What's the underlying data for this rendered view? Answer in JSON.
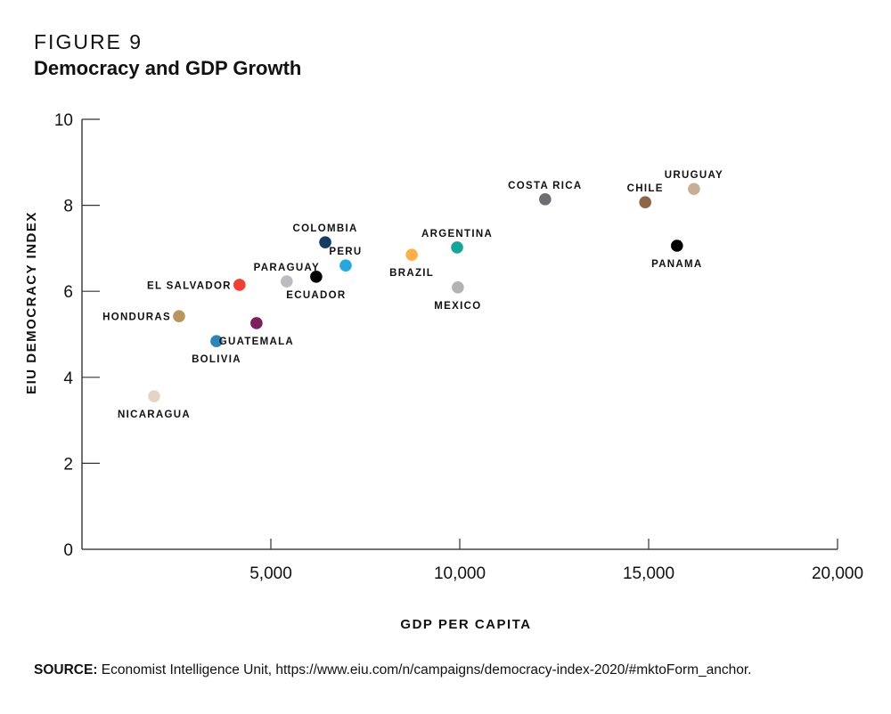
{
  "figure": {
    "label": "FIGURE 9",
    "title": "Democracy and GDP Growth"
  },
  "source": {
    "prefix": "SOURCE:",
    "text": " Economist Intelligence Unit, https://www.eiu.com/n/campaigns/democracy-index-2020/#mktoForm_anchor."
  },
  "chart_data": {
    "type": "scatter",
    "title": "Democracy and GDP Growth",
    "xlabel": "GDP PER CAPITA",
    "ylabel": "EIU DEMOCRACY INDEX",
    "xlim": [
      0,
      20000
    ],
    "ylim": [
      0,
      10
    ],
    "xticks": [
      5000,
      10000,
      15000,
      20000
    ],
    "xtick_labels": [
      "5,000",
      "10,000",
      "15,000",
      "20,000"
    ],
    "yticks": [
      0,
      2,
      4,
      6,
      8,
      10
    ],
    "ytick_labels": [
      "0",
      "2",
      "4",
      "6",
      "8",
      "10"
    ],
    "grid": false,
    "legend": "none",
    "points": [
      {
        "name": "NICARAGUA",
        "x": 1910,
        "y": 3.56,
        "color": "#e3d5c6",
        "label_pos": "below"
      },
      {
        "name": "HONDURAS",
        "x": 2570,
        "y": 5.42,
        "color": "#b9955f",
        "label_pos": "left"
      },
      {
        "name": "BOLIVIA",
        "x": 3560,
        "y": 4.84,
        "color": "#2e86b8",
        "label_pos": "below"
      },
      {
        "name": "EL SALVADOR",
        "x": 4170,
        "y": 6.15,
        "color": "#ee4035",
        "label_pos": "left"
      },
      {
        "name": "GUATEMALA",
        "x": 4620,
        "y": 5.26,
        "color": "#7d1f5e",
        "label_pos": "below"
      },
      {
        "name": "PARAGUAY",
        "x": 5420,
        "y": 6.23,
        "color": "#bcbcc0",
        "label_pos": "above"
      },
      {
        "name": "ECUADOR",
        "x": 6200,
        "y": 6.34,
        "color": "#000000",
        "label_pos": "below"
      },
      {
        "name": "COLOMBIA",
        "x": 6440,
        "y": 7.14,
        "color": "#173a63",
        "label_pos": "above"
      },
      {
        "name": "PERU",
        "x": 6980,
        "y": 6.6,
        "color": "#29a8e0",
        "label_pos": "above"
      },
      {
        "name": "BRAZIL",
        "x": 8730,
        "y": 6.85,
        "color": "#fbb04b",
        "label_pos": "below"
      },
      {
        "name": "ARGENTINA",
        "x": 9930,
        "y": 7.02,
        "color": "#16a596",
        "label_pos": "above"
      },
      {
        "name": "MEXICO",
        "x": 9950,
        "y": 6.09,
        "color": "#b3b3b6",
        "label_pos": "below"
      },
      {
        "name": "COSTA RICA",
        "x": 12260,
        "y": 8.14,
        "color": "#6d6e71",
        "label_pos": "above"
      },
      {
        "name": "CHILE",
        "x": 14910,
        "y": 8.07,
        "color": "#8c6646",
        "label_pos": "above"
      },
      {
        "name": "PANAMA",
        "x": 15750,
        "y": 7.06,
        "color": "#000000",
        "label_pos": "below"
      },
      {
        "name": "URUGUAY",
        "x": 16200,
        "y": 8.38,
        "color": "#c7ae96",
        "label_pos": "above"
      }
    ]
  }
}
